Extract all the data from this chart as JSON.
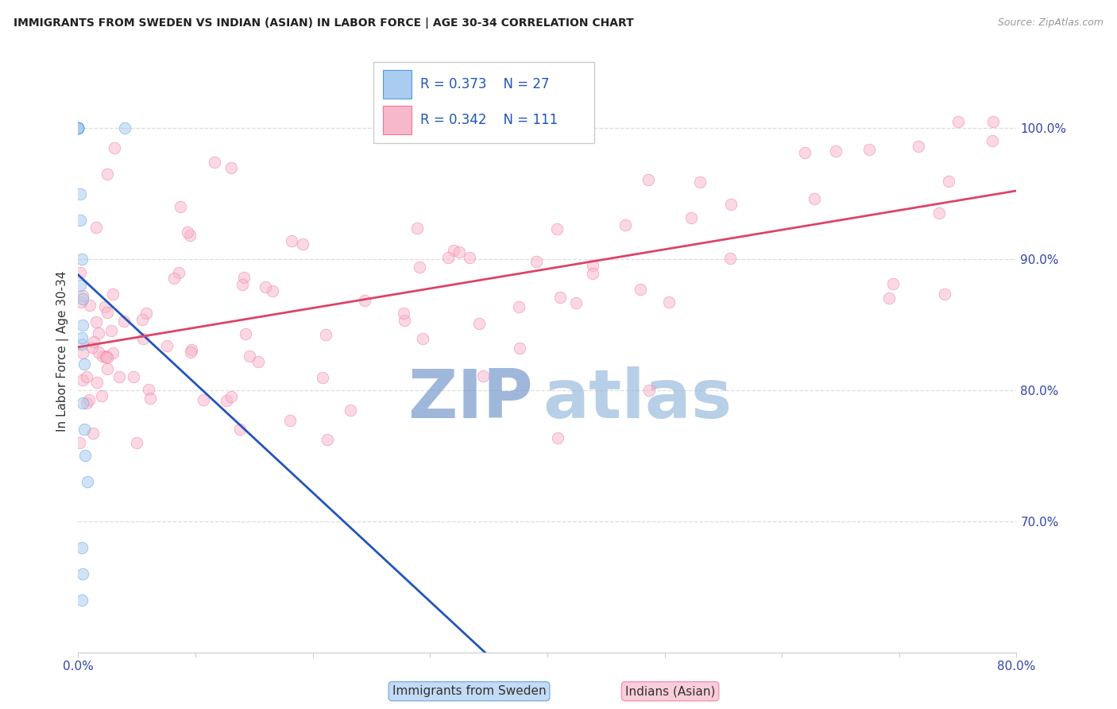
{
  "title": "IMMIGRANTS FROM SWEDEN VS INDIAN (ASIAN) IN LABOR FORCE | AGE 30-34 CORRELATION CHART",
  "source_text": "Source: ZipAtlas.com",
  "ylabel": "In Labor Force | Age 30-34",
  "xlim": [
    0.0,
    80.0
  ],
  "ylim": [
    60.0,
    106.0
  ],
  "yticks": [
    70.0,
    80.0,
    90.0,
    100.0
  ],
  "ytick_labels": [
    "70.0%",
    "80.0%",
    "90.0%",
    "100.0%"
  ],
  "xtick_positions": [
    0,
    10,
    20,
    30,
    40,
    50,
    60,
    70,
    80
  ],
  "xtick_labels": [
    "0.0%",
    "",
    "",
    "",
    "",
    "",
    "",
    "",
    "80.0%"
  ],
  "legend_blue_R": "0.373",
  "legend_blue_N": "27",
  "legend_pink_R": "0.342",
  "legend_pink_N": "111",
  "blue_fill": "#AACCF0",
  "pink_fill": "#F8B8CC",
  "blue_edge": "#5599DD",
  "pink_edge": "#EE7799",
  "blue_line": "#2255BB",
  "pink_line": "#DD4466",
  "legend_text_color": "#2255BB",
  "title_color": "#222222",
  "source_color": "#999999",
  "right_tick_color": "#3344AA",
  "bottom_tick_color": "#3344AA",
  "watermark_zip_color": "#7799CC",
  "watermark_atlas_color": "#99BBDD",
  "background_color": "#FFFFFF",
  "grid_color": "#DDDDDD",
  "marker_size": 110,
  "marker_alpha": 0.55,
  "line_width": 2.0,
  "figwidth": 14.06,
  "figheight": 8.92,
  "dpi": 100,
  "sweden_x": [
    0.0,
    0.0,
    0.0,
    0.0,
    0.0,
    0.0,
    0.0,
    0.0,
    0.0,
    0.0,
    0.15,
    0.2,
    0.3,
    0.2,
    0.4,
    0.3,
    0.5,
    0.4,
    0.3,
    0.6,
    0.8,
    4.0,
    0.3,
    0.4,
    0.3,
    0.5,
    0.4
  ],
  "sweden_y": [
    100.0,
    100.0,
    100.0,
    100.0,
    100.0,
    100.0,
    100.0,
    100.0,
    100.0,
    100.0,
    95.0,
    93.0,
    90.0,
    88.0,
    87.0,
    83.5,
    82.0,
    85.0,
    84.0,
    75.0,
    73.0,
    100.0,
    68.0,
    66.0,
    64.0,
    77.0,
    79.0
  ],
  "sweden_low_x": 0.5,
  "sweden_low_y": 63.0,
  "sweden_low2_y": 73.5,
  "indian_seed": 99
}
